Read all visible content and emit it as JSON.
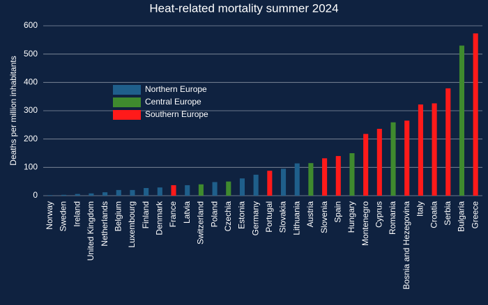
{
  "chart_data": {
    "type": "bar",
    "title": "Heat-related mortality summer 2024",
    "y_label": "Deaths per million inhabitants",
    "categories": [
      "Norway",
      "Sweden",
      "Ireland",
      "United Kingdom",
      "Netherlands",
      "Belgium",
      "Luxembourg",
      "Finland",
      "Denmark",
      "France",
      "Latvia",
      "Switzerland",
      "Poland",
      "Czechia",
      "Estonia",
      "Germany",
      "Portugal",
      "Slovakia",
      "Lithuania",
      "Austria",
      "Slovenia",
      "Spain",
      "Hungary",
      "Montenegro",
      "Cyprus",
      "Romania",
      "Bosnia and Hezegovina",
      "Italy",
      "Croatia",
      "Serbia",
      "Bulgaria",
      "Greece"
    ],
    "series": [
      {
        "name": "Northern Europe",
        "color": "#1f5f8b",
        "values": [
          2,
          3,
          6,
          8,
          12,
          20,
          20,
          27,
          29,
          null,
          37,
          null,
          48,
          null,
          61,
          74,
          null,
          95,
          114,
          null,
          null,
          null,
          null,
          null,
          null,
          null,
          null,
          null,
          null,
          null,
          null,
          null
        ]
      },
      {
        "name": "Central Europe",
        "color": "#3f8a2e",
        "values": [
          null,
          null,
          null,
          null,
          null,
          null,
          null,
          null,
          null,
          null,
          null,
          40,
          null,
          50,
          null,
          null,
          null,
          null,
          null,
          115,
          null,
          null,
          150,
          null,
          null,
          259,
          null,
          null,
          null,
          null,
          530,
          null
        ]
      },
      {
        "name": "Southern Europe",
        "color": "#ff1a1a",
        "values": [
          null,
          null,
          null,
          null,
          null,
          null,
          null,
          null,
          null,
          37,
          null,
          null,
          null,
          null,
          null,
          null,
          88,
          null,
          null,
          null,
          132,
          140,
          null,
          218,
          236,
          null,
          265,
          322,
          326,
          379,
          null,
          573
        ]
      }
    ],
    "ylim": [
      0,
      600
    ],
    "yticks": [
      0,
      100,
      200,
      300,
      400,
      500,
      600
    ],
    "grid": true,
    "legend": "upper left"
  }
}
